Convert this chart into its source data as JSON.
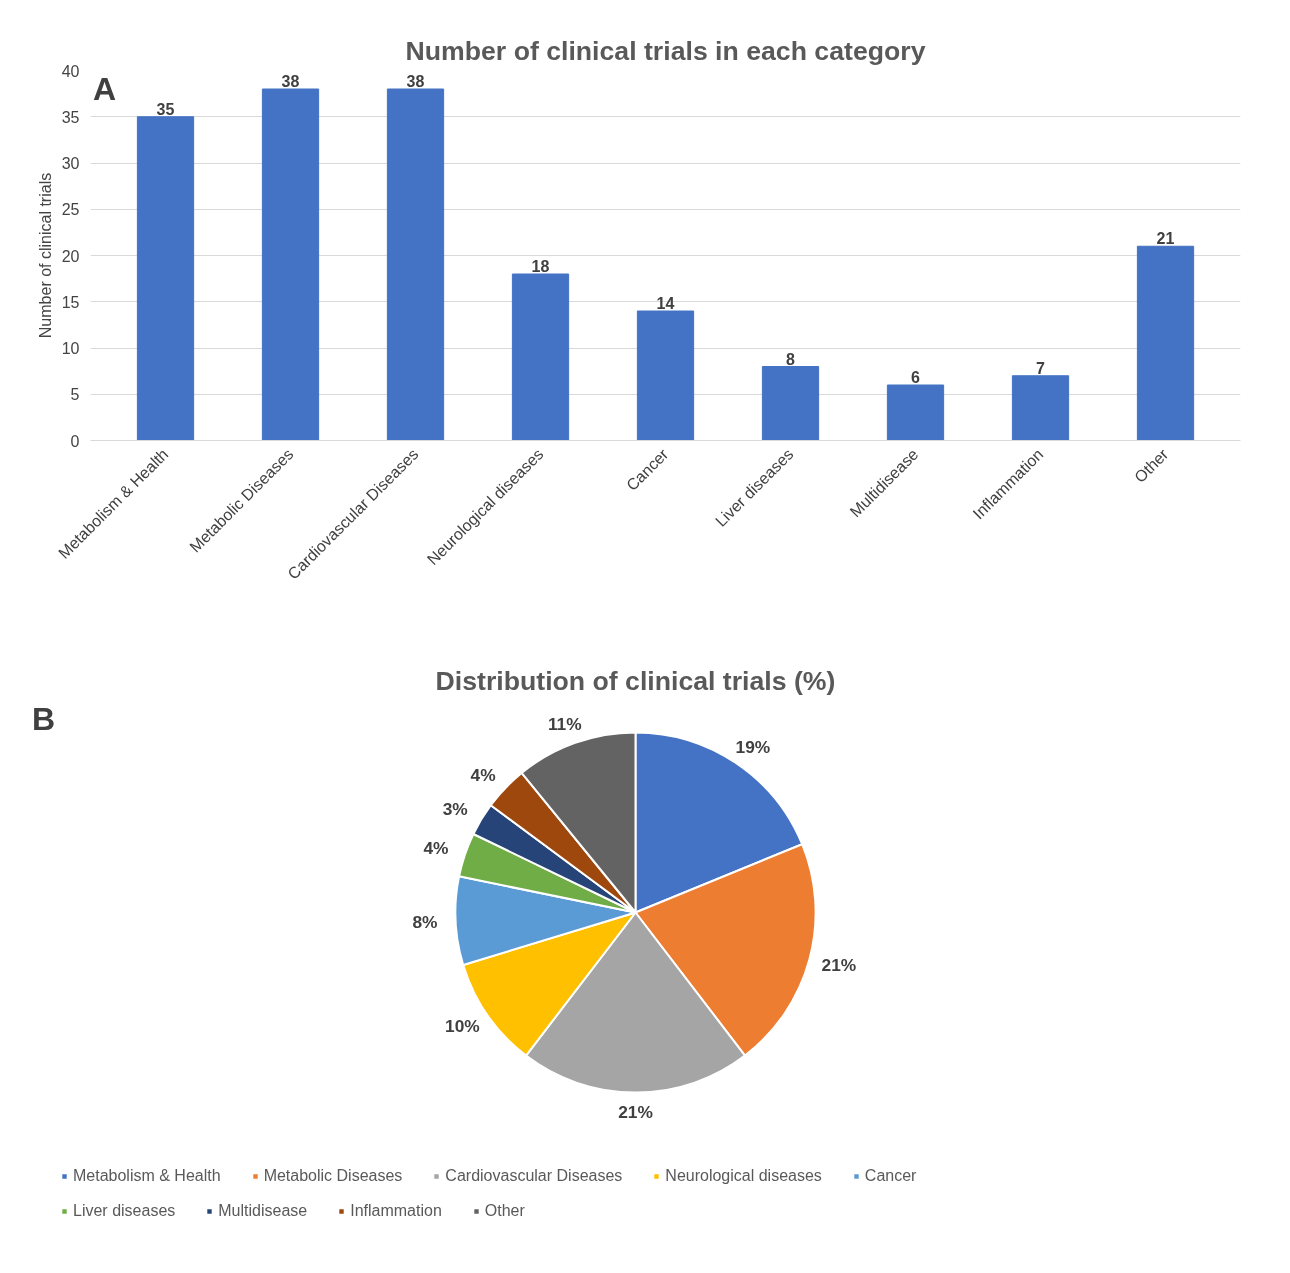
{
  "chart_data": [
    {
      "type": "bar",
      "title": "Number of clinical trials in each category",
      "annotations": [
        "A"
      ],
      "ylabel": "Number of clinical trials",
      "categories": [
        "Metabolism & Health",
        "Metabolic Diseases",
        "Cardiovascular Diseases",
        "Neurological diseases",
        "Cancer",
        "Liver diseases",
        "Multidisease",
        "Inflammation",
        "Other"
      ],
      "values": [
        35,
        38,
        38,
        18,
        14,
        8,
        6,
        7,
        21
      ],
      "color": "#4472c4",
      "ylim": [
        0,
        40
      ],
      "yticks": [
        0,
        5,
        10,
        15,
        20,
        25,
        30,
        35,
        40
      ],
      "grid": "y",
      "data_labels": true
    },
    {
      "type": "pie",
      "title": "Distribution of clinical trials (%)",
      "annotations": [
        "B"
      ],
      "categories": [
        "Metabolism & Health",
        "Metabolic Diseases",
        "Cardiovascular Diseases",
        "Neurological diseases",
        "Cancer",
        "Liver diseases",
        "Multidisease",
        "Inflammation",
        "Other"
      ],
      "values": [
        19,
        21,
        21,
        10,
        8,
        4,
        3,
        4,
        11
      ],
      "value_labels": [
        "19%",
        "21%",
        "21%",
        "10%",
        "8%",
        "4%",
        "3%",
        "4%",
        "11%"
      ],
      "colors": [
        "#4472c4",
        "#ed7d31",
        "#a5a5a5",
        "#ffc000",
        "#5b9bd5",
        "#70ad47",
        "#264478",
        "#9e480e",
        "#636363"
      ],
      "legend": "bottom"
    }
  ]
}
